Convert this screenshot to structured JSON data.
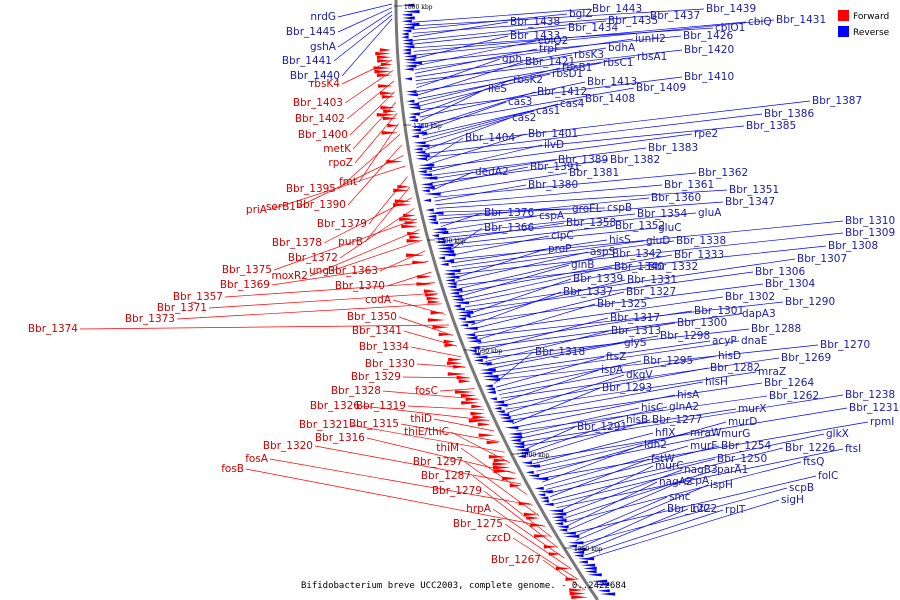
{
  "caption": "Bifidobacterium breve UCC2003, complete genome. - 0..2422684",
  "legend": [
    {
      "label": "Forward",
      "color": "#ff0000"
    },
    {
      "label": "Reverse",
      "color": "#0000ff"
    }
  ],
  "colors": {
    "forward": "#ff0000",
    "reverse": "#0000ff",
    "label_forward": "#cc0000",
    "label_reverse": "#1a1aaa",
    "backbone": "#777777"
  },
  "scale_marks": [
    "1800 kbp",
    "1750 kbp",
    "1700 kbp",
    "1650 kbp",
    "1600 kbp",
    "1550 kbp"
  ],
  "forward_labels": [
    "rbsK4",
    "Bbr_1403",
    "Bbr_1402",
    "Bbr_1400",
    "metK",
    "rpoZ",
    "fmt",
    "Bbr_1395",
    "Bbr_1390",
    "serB1",
    "priA",
    "Bbr_1379",
    "purB",
    "Bbr_1378",
    "Bbr_1372",
    "Bbr_1375",
    "moxR2",
    "ung",
    "Bbr_1363",
    "Bbr_1369",
    "Bbr_1370",
    "Bbr_1357",
    "Bbr_1371",
    "Bbr_1373",
    "codA",
    "Bbr_1374",
    "Bbr_1350",
    "Bbr_1341",
    "Bbr_1334",
    "Bbr_1330",
    "Bbr_1329",
    "fosC",
    "Bbr_1328",
    "Bbr_1319",
    "Bbr_1326",
    "thiD",
    "Bbr_1315",
    "Bbr_1321",
    "thiE/thiC",
    "Bbr_1316",
    "Bbr_1320",
    "thiM",
    "fosA",
    "Bbr_1297",
    "fosB",
    "Bbr_1287",
    "Bbr_1279",
    "hrpA",
    "Bbr_1275",
    "czcD",
    "Bbr_1267"
  ],
  "reverse_labels": [
    "nrdG",
    "Bbr_1445",
    "gshA",
    "Bbr_1441",
    "Bbr_1440",
    "Bbr_1443",
    "Bbr_1439",
    "bglZ",
    "Bbr_1437",
    "Bbr_1438",
    "Bbr_1435",
    "Bbr_1434",
    "cbiO1",
    "cbiQ",
    "Bbr_1431",
    "Bbr_1433",
    "Bbr_1426",
    "cbiO2",
    "iunH2",
    "trpF",
    "bdhA",
    "Bbr_1420",
    "rbsK3",
    "gph",
    "rbsA1",
    "Bbr_1421",
    "rbsC1",
    "rbsB1",
    "rbsD1",
    "Bbr_1410",
    "rbsK2",
    "Bbr_1413",
    "ileS",
    "Bbr_1409",
    "Bbr_1412",
    "cas3",
    "Bbr_1408",
    "cas4",
    "cas1",
    "Bbr_1387",
    "cas2",
    "Bbr_1386",
    "Bbr_1385",
    "Bbr_1404",
    "Bbr_1401",
    "rpe2",
    "ilvD",
    "Bbr_1383",
    "Bbr_1389",
    "Bbr_1382",
    "Bbr_1391",
    "dedA2",
    "Bbr_1381",
    "Bbr_1362",
    "Bbr_1380",
    "Bbr_1361",
    "Bbr_1351",
    "cspB",
    "groEL",
    "Bbr_1360",
    "Bbr_1347",
    "Bbr_1376",
    "cspA",
    "Bbr_1354",
    "gluA",
    "Bbr_1358",
    "Bbr_1352",
    "gluC",
    "Bbr_1366",
    "clpC",
    "Bbr_1310",
    "hisS",
    "gluD",
    "Bbr_1338",
    "Bbr_1309",
    "proP",
    "aspS",
    "Bbr_1308",
    "Bbr_1342",
    "Bbr_1333",
    "glnB",
    "Bbr_1340",
    "Bbr_1332",
    "Bbr_1307",
    "Bbr_1306",
    "Bbr_1339",
    "Bbr_1331",
    "Bbr_1304",
    "Bbr_1337",
    "Bbr_1327",
    "Bbr_1302",
    "Bbr_1290",
    "Bbr_1325",
    "Bbr_1301",
    "dapA3",
    "Bbr_1317",
    "Bbr_1300",
    "Bbr_1288",
    "Bbr_1313",
    "Bbr_1298",
    "glyS",
    "acyP",
    "dnaE",
    "Bbr_1270",
    "Bbr_1318",
    "ftsZ",
    "Bbr_1295",
    "hisD",
    "Bbr_1269",
    "ispA",
    "Bbr_1282",
    "mraZ",
    "dkgV",
    "hisH",
    "Bbr_1264",
    "Bbr_1293",
    "hisA",
    "Bbr_1262",
    "hisC",
    "glnA2",
    "murX",
    "Bbr_1238",
    "Bbr_1291",
    "hisB",
    "Bbr_1277",
    "Bbr_1231",
    "hflX",
    "mraW",
    "murG",
    "murD",
    "rpmI",
    "ldh2",
    "murF",
    "Bbr_1254",
    "glkX",
    "fstW",
    "Bbr_1250",
    "Bbr_1226",
    "ftsI",
    "murC",
    "nagB3",
    "parA1",
    "ftsQ",
    "nagA2",
    "scpA",
    "folC",
    "smc",
    "ispH",
    "scpB",
    "Bbr_1222",
    "infC",
    "rplT",
    "sigH"
  ]
}
